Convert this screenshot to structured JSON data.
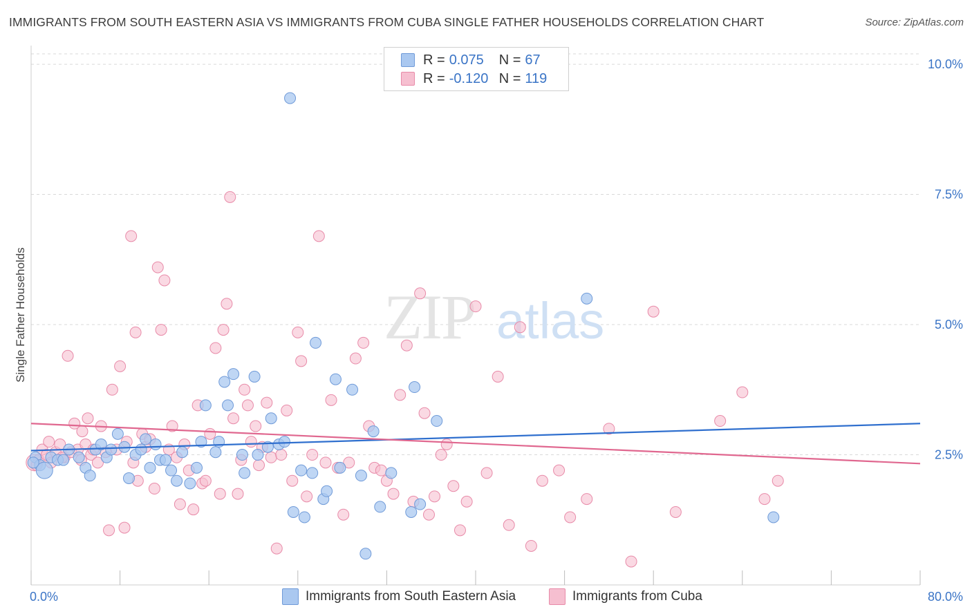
{
  "header": {
    "title": "IMMIGRANTS FROM SOUTH EASTERN ASIA VS IMMIGRANTS FROM CUBA SINGLE FATHER HOUSEHOLDS CORRELATION CHART",
    "source": "Source: ZipAtlas.com"
  },
  "watermark": {
    "zip": "ZIP",
    "atlas": "atlas"
  },
  "legend": {
    "rows": [
      {
        "r_label": "R =",
        "r_value": "0.075",
        "n_label": "N =",
        "n_value": "67"
      },
      {
        "r_label": "R =",
        "r_value": "-0.120",
        "n_label": "N =",
        "n_value": "119"
      }
    ]
  },
  "colors": {
    "blue_fill": "#aac8f0",
    "blue_stroke": "#6f9ad8",
    "blue_line": "#2f6fce",
    "pink_fill": "#f6bfd0",
    "pink_stroke": "#e88aa8",
    "pink_line": "#e0678f",
    "axis_text": "#3a74c6",
    "grid": "#d9d9d9"
  },
  "chart_data": {
    "type": "scatter",
    "title": "IMMIGRANTS FROM SOUTH EASTERN ASIA VS IMMIGRANTS FROM CUBA SINGLE FATHER HOUSEHOLDS CORRELATION CHART",
    "xlabel": "",
    "ylabel": "Single Father Households",
    "x_tick_labels": [
      "0.0%",
      "80.0%"
    ],
    "y_tick_labels": [
      "2.5%",
      "5.0%",
      "7.5%",
      "10.0%"
    ],
    "y_ticks": [
      2.5,
      5.0,
      7.5,
      10.0
    ],
    "xlim": [
      0,
      80
    ],
    "ylim": [
      0,
      10.2
    ],
    "grid": true,
    "legend_position": "top-center",
    "series": [
      {
        "name": "Immigrants from South Eastern Asia",
        "R": 0.075,
        "N": 67,
        "trend": {
          "x": [
            0,
            80
          ],
          "y": [
            2.58,
            3.1
          ]
        },
        "points": [
          {
            "x": 0.4,
            "y": 2.45
          },
          {
            "x": 0.8,
            "y": 2.3
          },
          {
            "x": 1.2,
            "y": 2.2
          },
          {
            "x": 1.8,
            "y": 2.45
          },
          {
            "x": 2.4,
            "y": 2.4
          },
          {
            "x": 2.9,
            "y": 2.4
          },
          {
            "x": 3.4,
            "y": 2.6
          },
          {
            "x": 4.3,
            "y": 2.45
          },
          {
            "x": 4.9,
            "y": 2.25
          },
          {
            "x": 5.3,
            "y": 2.1
          },
          {
            "x": 5.8,
            "y": 2.6
          },
          {
            "x": 6.3,
            "y": 2.7
          },
          {
            "x": 6.8,
            "y": 2.45
          },
          {
            "x": 7.2,
            "y": 2.6
          },
          {
            "x": 7.8,
            "y": 2.9
          },
          {
            "x": 8.4,
            "y": 2.65
          },
          {
            "x": 8.8,
            "y": 2.05
          },
          {
            "x": 9.4,
            "y": 2.5
          },
          {
            "x": 9.9,
            "y": 2.6
          },
          {
            "x": 10.3,
            "y": 2.8
          },
          {
            "x": 10.7,
            "y": 2.25
          },
          {
            "x": 11.2,
            "y": 2.7
          },
          {
            "x": 11.6,
            "y": 2.4
          },
          {
            "x": 12.1,
            "y": 2.4
          },
          {
            "x": 12.6,
            "y": 2.2
          },
          {
            "x": 13.1,
            "y": 2.0
          },
          {
            "x": 13.6,
            "y": 2.55
          },
          {
            "x": 14.3,
            "y": 1.95
          },
          {
            "x": 14.9,
            "y": 2.25
          },
          {
            "x": 15.3,
            "y": 2.75
          },
          {
            "x": 15.7,
            "y": 3.45
          },
          {
            "x": 16.6,
            "y": 2.55
          },
          {
            "x": 16.9,
            "y": 2.75
          },
          {
            "x": 17.4,
            "y": 3.9
          },
          {
            "x": 17.7,
            "y": 3.45
          },
          {
            "x": 18.2,
            "y": 4.05
          },
          {
            "x": 19.0,
            "y": 2.5
          },
          {
            "x": 19.2,
            "y": 2.15
          },
          {
            "x": 20.1,
            "y": 4.0
          },
          {
            "x": 20.4,
            "y": 2.5
          },
          {
            "x": 21.3,
            "y": 2.65
          },
          {
            "x": 21.6,
            "y": 3.2
          },
          {
            "x": 22.3,
            "y": 2.7
          },
          {
            "x": 22.8,
            "y": 2.75
          },
          {
            "x": 23.3,
            "y": 9.35
          },
          {
            "x": 23.6,
            "y": 1.4
          },
          {
            "x": 24.3,
            "y": 2.2
          },
          {
            "x": 24.6,
            "y": 1.3
          },
          {
            "x": 25.3,
            "y": 2.15
          },
          {
            "x": 25.6,
            "y": 4.65
          },
          {
            "x": 26.3,
            "y": 1.65
          },
          {
            "x": 26.6,
            "y": 1.8
          },
          {
            "x": 27.4,
            "y": 3.95
          },
          {
            "x": 27.8,
            "y": 2.25
          },
          {
            "x": 28.9,
            "y": 3.75
          },
          {
            "x": 29.7,
            "y": 2.1
          },
          {
            "x": 30.1,
            "y": 0.6
          },
          {
            "x": 30.8,
            "y": 2.95
          },
          {
            "x": 31.4,
            "y": 1.5
          },
          {
            "x": 32.4,
            "y": 2.15
          },
          {
            "x": 34.2,
            "y": 1.4
          },
          {
            "x": 34.5,
            "y": 3.8
          },
          {
            "x": 35.0,
            "y": 1.55
          },
          {
            "x": 36.5,
            "y": 3.15
          },
          {
            "x": 50.0,
            "y": 5.5
          },
          {
            "x": 66.8,
            "y": 1.3
          },
          {
            "x": 0.2,
            "y": 2.35
          }
        ]
      },
      {
        "name": "Immigrants from Cuba",
        "R": -0.12,
        "N": 119,
        "trend": {
          "x": [
            0,
            80
          ],
          "y": [
            3.1,
            2.33
          ]
        },
        "points": [
          {
            "x": 0.3,
            "y": 2.35
          },
          {
            "x": 0.7,
            "y": 2.4
          },
          {
            "x": 1.0,
            "y": 2.6
          },
          {
            "x": 1.4,
            "y": 2.5
          },
          {
            "x": 1.8,
            "y": 2.35
          },
          {
            "x": 2.2,
            "y": 2.55
          },
          {
            "x": 2.6,
            "y": 2.7
          },
          {
            "x": 3.0,
            "y": 2.45
          },
          {
            "x": 3.3,
            "y": 4.4
          },
          {
            "x": 3.6,
            "y": 2.55
          },
          {
            "x": 3.9,
            "y": 3.1
          },
          {
            "x": 4.2,
            "y": 2.6
          },
          {
            "x": 4.5,
            "y": 2.4
          },
          {
            "x": 4.6,
            "y": 2.95
          },
          {
            "x": 4.9,
            "y": 2.7
          },
          {
            "x": 5.1,
            "y": 3.2
          },
          {
            "x": 5.4,
            "y": 2.5
          },
          {
            "x": 5.6,
            "y": 2.6
          },
          {
            "x": 6.0,
            "y": 2.35
          },
          {
            "x": 6.3,
            "y": 3.05
          },
          {
            "x": 6.7,
            "y": 2.55
          },
          {
            "x": 7.0,
            "y": 1.05
          },
          {
            "x": 7.3,
            "y": 3.75
          },
          {
            "x": 7.7,
            "y": 2.6
          },
          {
            "x": 8.0,
            "y": 4.2
          },
          {
            "x": 8.4,
            "y": 1.1
          },
          {
            "x": 8.6,
            "y": 2.75
          },
          {
            "x": 9.0,
            "y": 6.7
          },
          {
            "x": 9.4,
            "y": 4.85
          },
          {
            "x": 9.6,
            "y": 2.0
          },
          {
            "x": 10.0,
            "y": 2.9
          },
          {
            "x": 10.3,
            "y": 2.65
          },
          {
            "x": 10.7,
            "y": 2.8
          },
          {
            "x": 11.1,
            "y": 1.85
          },
          {
            "x": 11.4,
            "y": 6.1
          },
          {
            "x": 11.7,
            "y": 4.9
          },
          {
            "x": 12.0,
            "y": 5.85
          },
          {
            "x": 12.4,
            "y": 2.6
          },
          {
            "x": 12.7,
            "y": 3.05
          },
          {
            "x": 13.1,
            "y": 2.45
          },
          {
            "x": 13.4,
            "y": 1.55
          },
          {
            "x": 13.8,
            "y": 2.7
          },
          {
            "x": 14.2,
            "y": 2.2
          },
          {
            "x": 14.6,
            "y": 1.45
          },
          {
            "x": 15.0,
            "y": 3.45
          },
          {
            "x": 15.4,
            "y": 1.95
          },
          {
            "x": 15.7,
            "y": 2.0
          },
          {
            "x": 16.1,
            "y": 2.9
          },
          {
            "x": 16.6,
            "y": 4.55
          },
          {
            "x": 17.0,
            "y": 1.75
          },
          {
            "x": 17.3,
            "y": 4.9
          },
          {
            "x": 17.6,
            "y": 5.4
          },
          {
            "x": 17.9,
            "y": 7.45
          },
          {
            "x": 18.2,
            "y": 3.2
          },
          {
            "x": 18.6,
            "y": 1.75
          },
          {
            "x": 18.9,
            "y": 2.4
          },
          {
            "x": 19.2,
            "y": 3.75
          },
          {
            "x": 19.5,
            "y": 3.45
          },
          {
            "x": 19.8,
            "y": 2.75
          },
          {
            "x": 20.2,
            "y": 3.05
          },
          {
            "x": 20.5,
            "y": 2.3
          },
          {
            "x": 20.8,
            "y": 2.65
          },
          {
            "x": 21.2,
            "y": 3.5
          },
          {
            "x": 21.6,
            "y": 2.45
          },
          {
            "x": 22.1,
            "y": 0.7
          },
          {
            "x": 22.5,
            "y": 2.5
          },
          {
            "x": 23.0,
            "y": 3.35
          },
          {
            "x": 23.5,
            "y": 2.0
          },
          {
            "x": 24.0,
            "y": 4.85
          },
          {
            "x": 24.3,
            "y": 4.3
          },
          {
            "x": 24.8,
            "y": 1.7
          },
          {
            "x": 25.3,
            "y": 2.5
          },
          {
            "x": 25.9,
            "y": 6.7
          },
          {
            "x": 26.5,
            "y": 2.35
          },
          {
            "x": 27.0,
            "y": 3.55
          },
          {
            "x": 27.6,
            "y": 2.25
          },
          {
            "x": 28.1,
            "y": 1.35
          },
          {
            "x": 28.6,
            "y": 2.35
          },
          {
            "x": 29.2,
            "y": 4.35
          },
          {
            "x": 29.9,
            "y": 4.65
          },
          {
            "x": 30.4,
            "y": 3.05
          },
          {
            "x": 30.9,
            "y": 2.25
          },
          {
            "x": 31.5,
            "y": 2.2
          },
          {
            "x": 32.0,
            "y": 2.0
          },
          {
            "x": 32.6,
            "y": 1.75
          },
          {
            "x": 33.2,
            "y": 3.65
          },
          {
            "x": 33.8,
            "y": 4.6
          },
          {
            "x": 34.4,
            "y": 1.6
          },
          {
            "x": 35.0,
            "y": 5.6
          },
          {
            "x": 35.4,
            "y": 3.3
          },
          {
            "x": 35.8,
            "y": 1.35
          },
          {
            "x": 36.3,
            "y": 1.7
          },
          {
            "x": 36.9,
            "y": 2.5
          },
          {
            "x": 37.4,
            "y": 2.7
          },
          {
            "x": 38.0,
            "y": 1.9
          },
          {
            "x": 38.6,
            "y": 1.05
          },
          {
            "x": 39.2,
            "y": 1.6
          },
          {
            "x": 40.0,
            "y": 5.35
          },
          {
            "x": 41.0,
            "y": 2.15
          },
          {
            "x": 42.0,
            "y": 4.0
          },
          {
            "x": 43.0,
            "y": 1.15
          },
          {
            "x": 44.0,
            "y": 4.95
          },
          {
            "x": 45.0,
            "y": 0.75
          },
          {
            "x": 46.0,
            "y": 2.0
          },
          {
            "x": 47.5,
            "y": 2.2
          },
          {
            "x": 48.5,
            "y": 1.3
          },
          {
            "x": 50.0,
            "y": 1.65
          },
          {
            "x": 52.0,
            "y": 3.0
          },
          {
            "x": 54.0,
            "y": 0.45
          },
          {
            "x": 56.0,
            "y": 5.25
          },
          {
            "x": 58.0,
            "y": 1.4
          },
          {
            "x": 62.0,
            "y": 3.15
          },
          {
            "x": 64.0,
            "y": 3.7
          },
          {
            "x": 66.0,
            "y": 1.65
          },
          {
            "x": 67.2,
            "y": 2.0
          },
          {
            "x": 1.6,
            "y": 2.75
          },
          {
            "x": 2.8,
            "y": 2.45
          },
          {
            "x": 0.5,
            "y": 2.3
          },
          {
            "x": 9.2,
            "y": 2.35
          }
        ]
      }
    ]
  },
  "bottom_legend": {
    "items": [
      {
        "label": "Immigrants from South Eastern Asia"
      },
      {
        "label": "Immigrants from Cuba"
      }
    ]
  }
}
